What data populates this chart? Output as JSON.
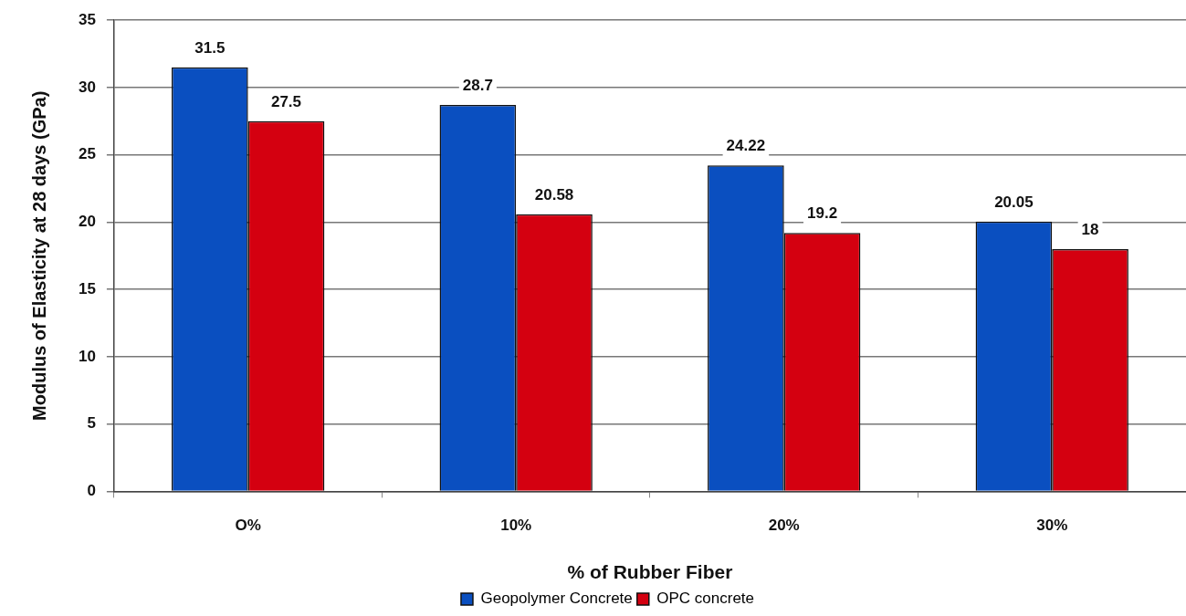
{
  "chart_data": {
    "type": "bar",
    "xlabel": "% of Rubber Fiber",
    "ylabel": "Modulus of Elasticity at 28 days (GPa)",
    "categories": [
      "O%",
      "10%",
      "20%",
      "30%"
    ],
    "series": [
      {
        "name": "Geopolymer Concrete",
        "color": "#0a4fc0",
        "values": [
          31.5,
          28.7,
          24.22,
          20.05
        ]
      },
      {
        "name": "OPC concrete",
        "color": "#d40010",
        "values": [
          27.5,
          20.58,
          19.2,
          18
        ]
      }
    ],
    "ylim": [
      0,
      35
    ],
    "yticks": [
      0,
      5,
      10,
      15,
      20,
      25,
      30,
      35
    ],
    "grid": "y",
    "legend": "bottom",
    "data_labels": true
  }
}
